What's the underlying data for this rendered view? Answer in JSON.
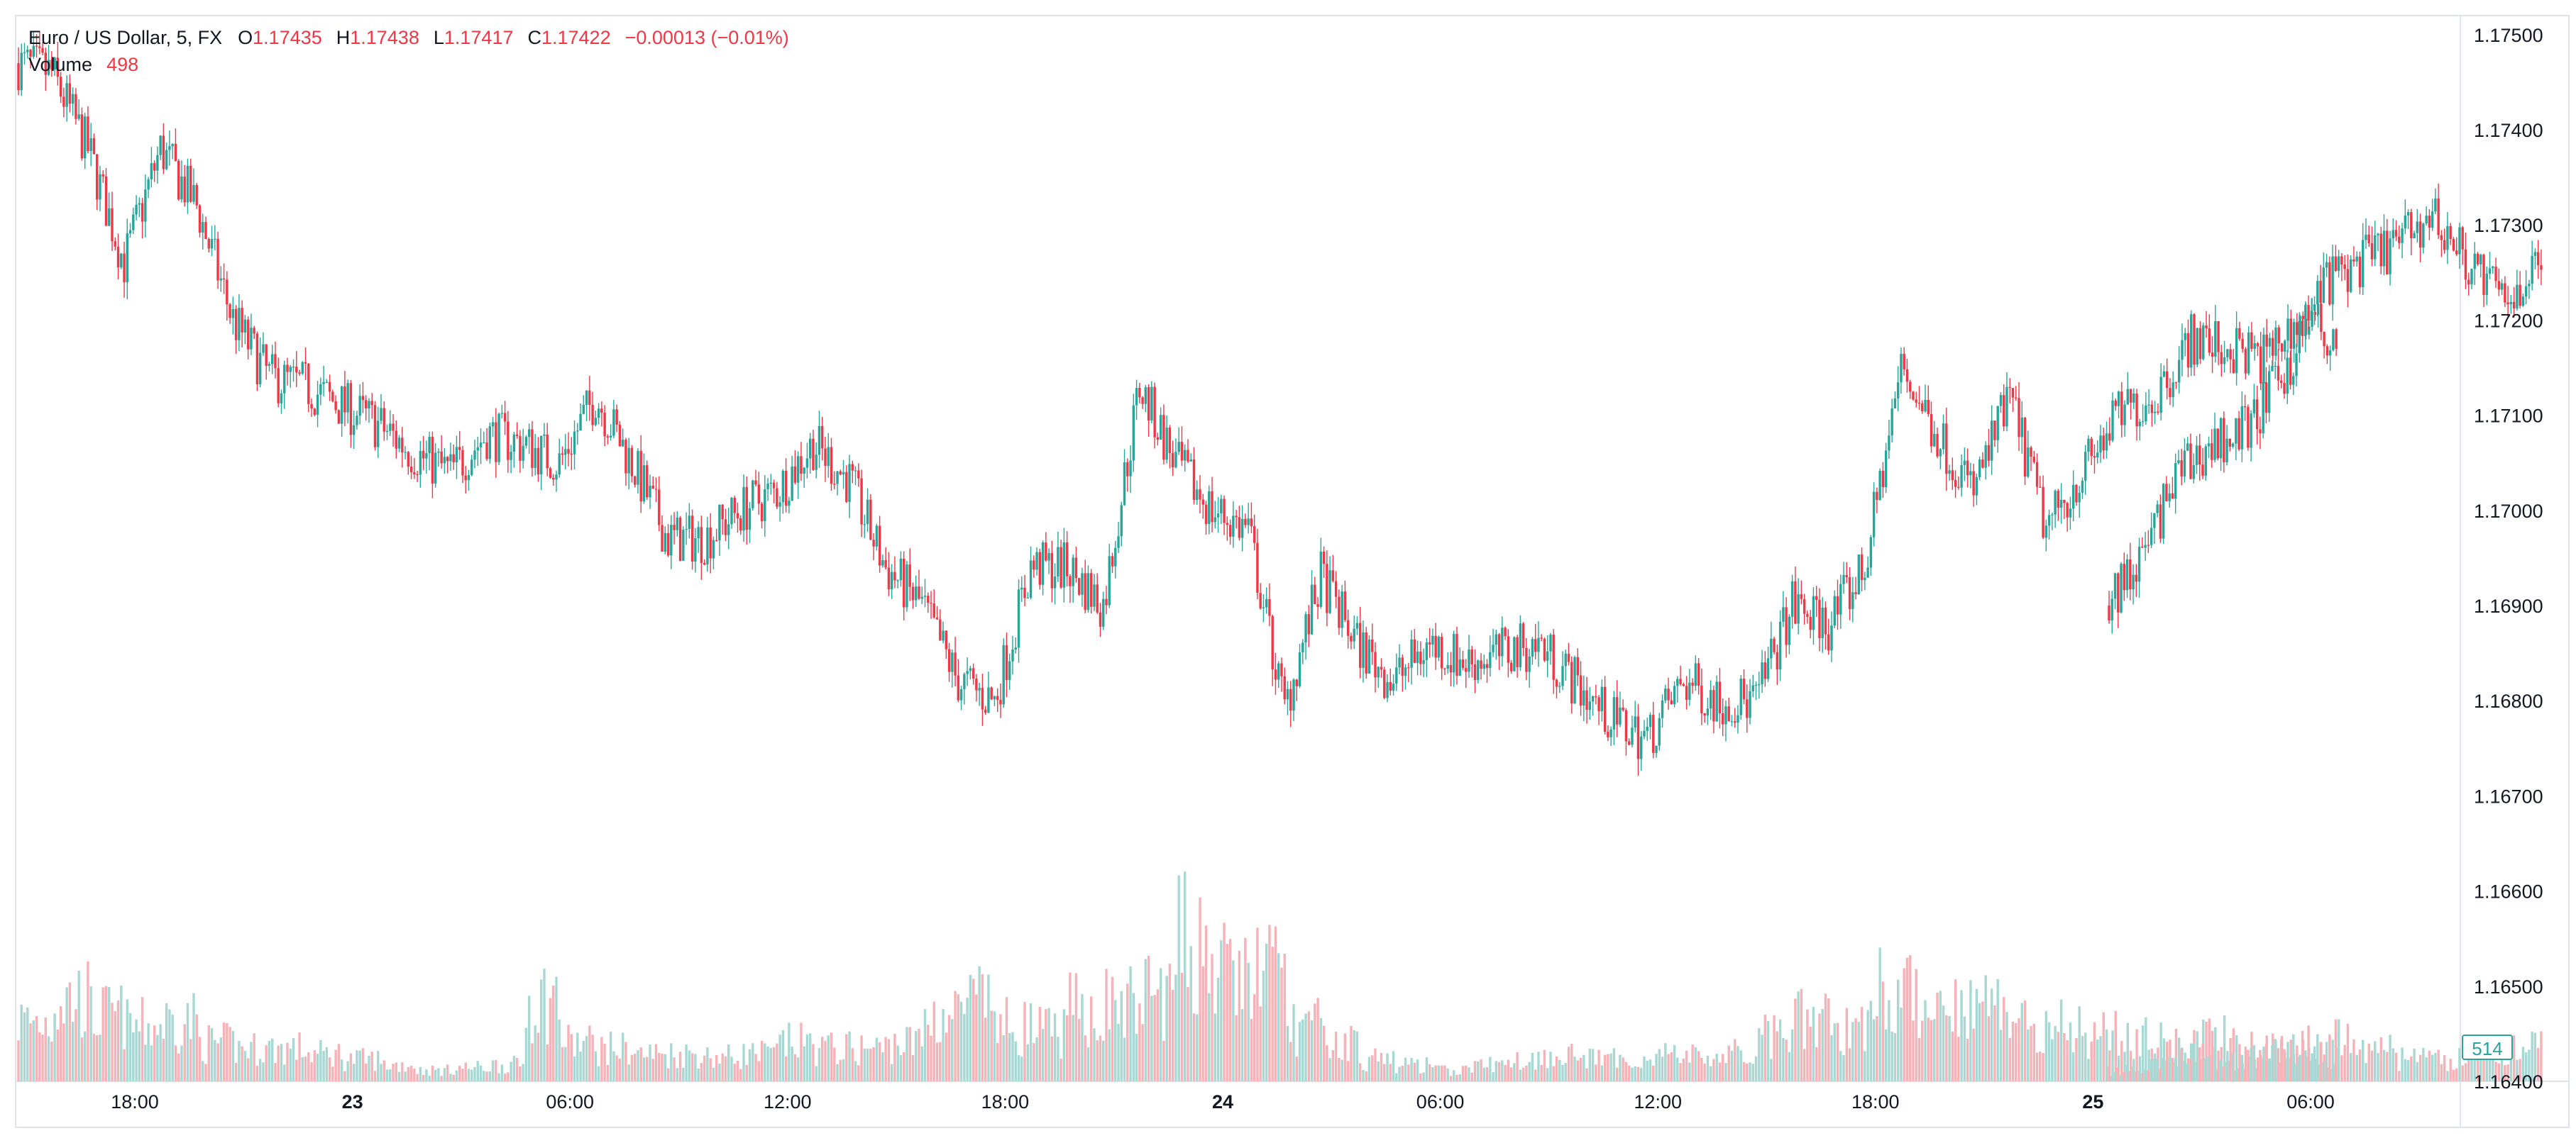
{
  "legend": {
    "symbol": "Euro / US Dollar, 5, FX",
    "open_label": "O",
    "open": "1.17435",
    "high_label": "H",
    "high": "1.17438",
    "low_label": "L",
    "low": "1.17417",
    "close_label": "C",
    "close": "1.17422",
    "change": "−0.00013 (−0.01%)",
    "volume_label": "Volume",
    "volume": "498"
  },
  "volume_badge": "514",
  "colors": {
    "up": "#26a69a",
    "down": "#f23645",
    "up_volume": "#a8d8d3",
    "down_volume": "#f7b2b8",
    "text": "#131722"
  },
  "chart_data": {
    "type": "candlestick",
    "title": "Euro / US Dollar, 5, FX",
    "interval": "5",
    "y_axis": {
      "position": "right",
      "range": [
        1.164,
        1.1752
      ],
      "ticks": [
        "1.17500",
        "1.17400",
        "1.17300",
        "1.17200",
        "1.17100",
        "1.17000",
        "1.16900",
        "1.16800",
        "1.16700",
        "1.16600",
        "1.16500",
        "1.16400"
      ]
    },
    "x_axis": {
      "ticks": [
        {
          "label": "18:00",
          "bold": false
        },
        {
          "label": "23",
          "bold": true
        },
        {
          "label": "06:00",
          "bold": false
        },
        {
          "label": "12:00",
          "bold": false
        },
        {
          "label": "18:00",
          "bold": false
        },
        {
          "label": "24",
          "bold": true
        },
        {
          "label": "06:00",
          "bold": false
        },
        {
          "label": "12:00",
          "bold": false
        },
        {
          "label": "18:00",
          "bold": false
        },
        {
          "label": "25",
          "bold": true
        },
        {
          "label": "06:00",
          "bold": false
        }
      ]
    },
    "grid": false,
    "price_path_hourly": [
      1.1746,
      1.1738,
      1.1726,
      1.1738,
      1.1732,
      1.172,
      1.1714,
      1.1713,
      1.1711,
      1.1709,
      1.1706,
      1.1704,
      1.1708,
      1.1707,
      1.1705,
      1.1712,
      1.1705,
      1.1697,
      1.1697,
      1.17,
      1.1702,
      1.1707,
      1.1703,
      1.1694,
      1.169,
      1.1682,
      1.168,
      1.1694,
      1.1694,
      1.169,
      1.1713,
      1.1705,
      1.17,
      1.1698,
      1.1679,
      1.1693,
      1.1686,
      1.1682,
      1.1686,
      1.1684,
      1.1685,
      1.1686,
      1.1682,
      1.1678,
      1.1676,
      1.1682,
      1.168,
      1.168,
      1.169,
      1.1688,
      1.1694,
      1.1715,
      1.1708,
      1.1702,
      1.1712,
      1.1698,
      1.1704,
      1.171,
      1.1712,
      1.1718,
      1.1717,
      1.1716,
      1.172,
      1.1718
    ],
    "price_path_after_gap_hourly": [
      1.1695,
      1.1704,
      1.1707,
      1.1709,
      1.1715,
      1.1724,
      1.1726,
      1.1728,
      1.1731,
      1.1726,
      1.1722,
      1.1726
    ],
    "volume_range": [
      0,
      100
    ],
    "volume_profile_hourly": [
      22,
      30,
      24,
      20,
      22,
      14,
      12,
      12,
      10,
      8,
      6,
      4,
      5,
      6,
      30,
      14,
      12,
      10,
      10,
      9,
      10,
      14,
      12,
      12,
      14,
      24,
      28,
      20,
      18,
      26,
      28,
      32,
      50,
      38,
      40,
      20,
      14,
      8,
      6,
      4,
      6,
      8,
      10,
      8,
      8,
      10,
      9,
      10,
      16,
      22,
      20,
      34,
      30,
      30,
      28,
      22,
      20,
      18,
      16,
      14,
      16,
      14,
      12,
      10
    ],
    "volume_profile_after_gap_hourly": [
      4,
      8,
      10,
      8,
      10,
      14,
      16,
      12,
      8,
      8,
      10,
      12
    ]
  }
}
